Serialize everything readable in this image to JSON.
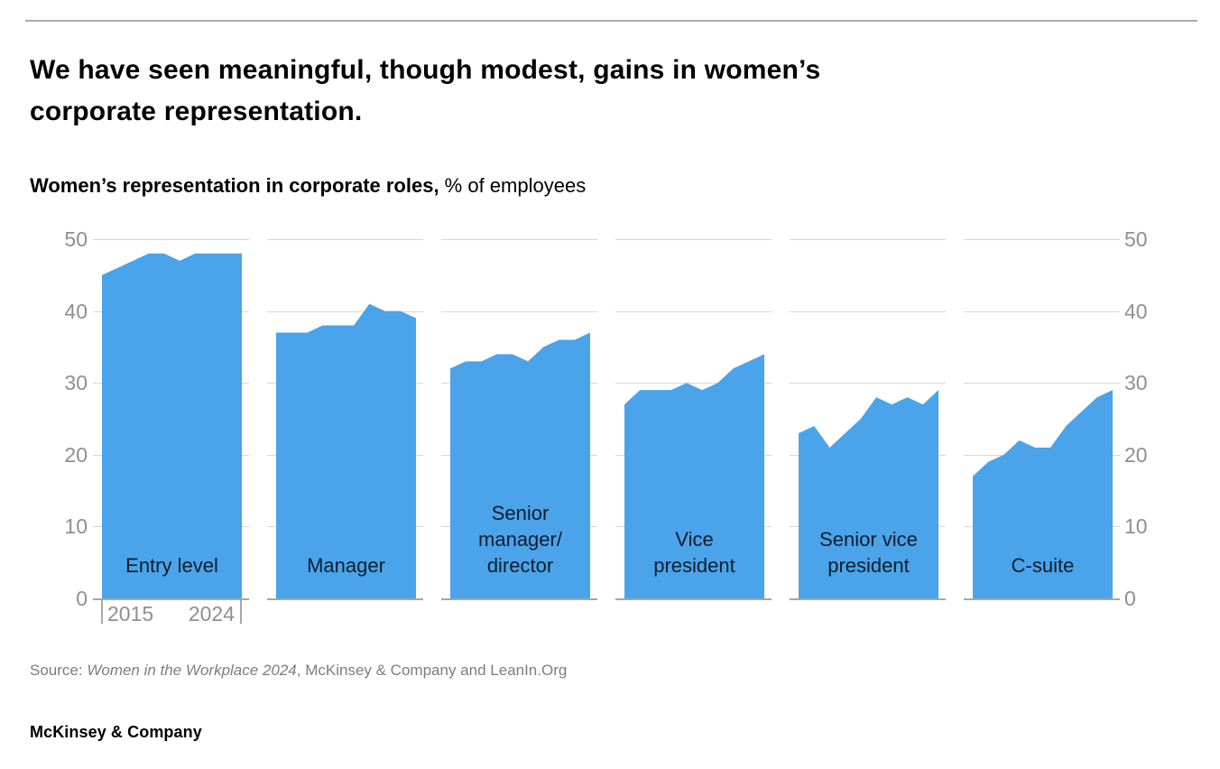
{
  "header": {
    "title_line1": "We have seen meaningful, though modest, gains in women’s",
    "title_line2": "corporate representation.",
    "subtitle_bold": "Women’s representation in corporate roles,",
    "subtitle_regular": " % of employees"
  },
  "chart_data": {
    "type": "area",
    "title": "Women’s representation in corporate roles",
    "unit": "% of employees",
    "x": [
      2015,
      2016,
      2017,
      2018,
      2019,
      2020,
      2021,
      2022,
      2023,
      2024
    ],
    "x_axis_labels": [
      "2015",
      "2024"
    ],
    "y_ticks": [
      0,
      10,
      20,
      30,
      40,
      50
    ],
    "ylim": [
      0,
      50
    ],
    "grid": "horizontal",
    "legend": "none",
    "area_color": "#4BA4EA",
    "panels": [
      {
        "label": "Entry level",
        "label_lines": [
          "Entry level"
        ],
        "values": [
          45,
          46,
          47,
          48,
          48,
          47,
          48,
          48,
          48,
          48
        ]
      },
      {
        "label": "Manager",
        "label_lines": [
          "Manager"
        ],
        "values": [
          37,
          37,
          37,
          38,
          38,
          38,
          41,
          40,
          40,
          39
        ]
      },
      {
        "label": "Senior manager/director",
        "label_lines": [
          "Senior",
          "manager/",
          "director"
        ],
        "values": [
          32,
          33,
          33,
          34,
          34,
          33,
          35,
          36,
          36,
          37
        ]
      },
      {
        "label": "Vice president",
        "label_lines": [
          "Vice",
          "president"
        ],
        "values": [
          27,
          29,
          29,
          29,
          30,
          29,
          30,
          32,
          33,
          34
        ]
      },
      {
        "label": "Senior vice president",
        "label_lines": [
          "Senior vice",
          "president"
        ],
        "values": [
          23,
          24,
          21,
          23,
          25,
          28,
          27,
          28,
          27,
          29
        ]
      },
      {
        "label": "C-suite",
        "label_lines": [
          "C-suite"
        ],
        "values": [
          17,
          19,
          20,
          22,
          21,
          21,
          24,
          26,
          28,
          29
        ]
      }
    ]
  },
  "source": {
    "prefix": "Source: ",
    "italic": "Women in the Workplace 2024",
    "suffix": ", McKinsey & Company and LeanIn.Org"
  },
  "footer": {
    "brand": "McKinsey & Company"
  }
}
